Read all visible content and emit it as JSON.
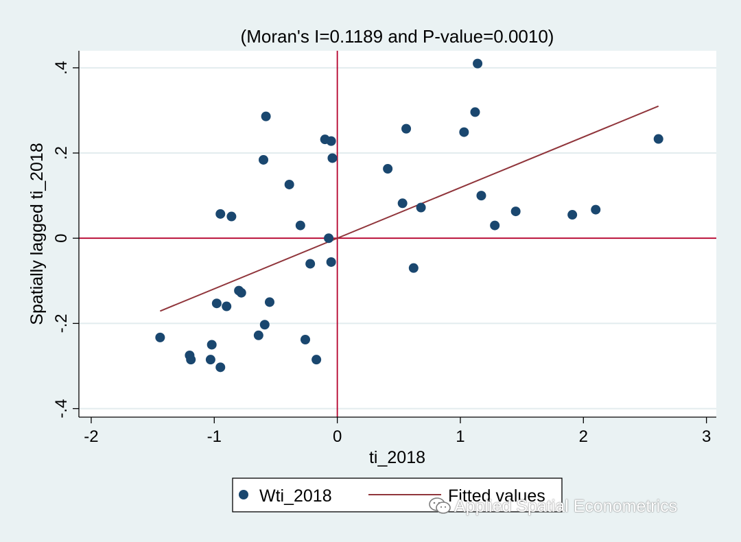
{
  "chart_data": {
    "type": "scatter",
    "title": "(Moran's I=0.1189 and P-value=0.0010)",
    "xlabel": "ti_2018",
    "ylabel": "Spatially lagged ti_2018",
    "xlim": [
      -2.1,
      3.08
    ],
    "ylim": [
      -0.42,
      0.44
    ],
    "x_ticks": [
      -2,
      -1,
      0,
      1,
      2,
      3
    ],
    "x_tick_labels": [
      "-2",
      "-1",
      "0",
      "1",
      "2",
      "3"
    ],
    "y_ticks": [
      -0.4,
      -0.2,
      0,
      0.2,
      0.4
    ],
    "y_tick_labels": [
      "-.4",
      "-.2",
      "0",
      ".2",
      ".4"
    ],
    "grid": "horizontal",
    "reference_lines": {
      "x": 0,
      "y": 0,
      "color": "#b5002b"
    },
    "series": [
      {
        "name": "Wti_2018",
        "kind": "points",
        "color": "#1a476f",
        "points": [
          [
            -1.44,
            -0.233
          ],
          [
            -1.2,
            -0.275
          ],
          [
            -1.19,
            -0.285
          ],
          [
            -1.02,
            -0.25
          ],
          [
            -1.03,
            -0.285
          ],
          [
            -0.95,
            -0.303
          ],
          [
            -0.98,
            -0.153
          ],
          [
            -0.9,
            -0.16
          ],
          [
            -0.95,
            0.057
          ],
          [
            -0.86,
            0.051
          ],
          [
            -0.8,
            -0.123
          ],
          [
            -0.78,
            -0.128
          ],
          [
            -0.64,
            -0.228
          ],
          [
            -0.59,
            -0.203
          ],
          [
            -0.55,
            -0.15
          ],
          [
            -0.6,
            0.184
          ],
          [
            -0.58,
            0.286
          ],
          [
            -0.39,
            0.126
          ],
          [
            -0.3,
            0.03
          ],
          [
            -0.26,
            -0.238
          ],
          [
            -0.22,
            -0.06
          ],
          [
            -0.17,
            -0.285
          ],
          [
            -0.1,
            0.232
          ],
          [
            -0.07,
            0.0
          ],
          [
            -0.05,
            0.228
          ],
          [
            -0.04,
            0.188
          ],
          [
            -0.05,
            -0.056
          ],
          [
            0.41,
            0.163
          ],
          [
            0.53,
            0.082
          ],
          [
            0.56,
            0.257
          ],
          [
            0.62,
            -0.07
          ],
          [
            0.68,
            0.072
          ],
          [
            1.03,
            0.249
          ],
          [
            1.12,
            0.296
          ],
          [
            1.14,
            0.41
          ],
          [
            1.17,
            0.1
          ],
          [
            1.28,
            0.03
          ],
          [
            1.45,
            0.063
          ],
          [
            1.91,
            0.055
          ],
          [
            2.1,
            0.067
          ],
          [
            2.61,
            0.233
          ]
        ]
      },
      {
        "name": "Fitted values",
        "kind": "line",
        "color": "#90353b",
        "x": [
          -1.44,
          2.61
        ],
        "y": [
          -0.171,
          0.31
        ]
      }
    ],
    "legend": {
      "position": "bottom",
      "entries": [
        {
          "label": "Wti_2018",
          "marker": "dot",
          "color": "#1a476f"
        },
        {
          "label": "Fitted values",
          "marker": "line",
          "color": "#90353b"
        }
      ]
    }
  },
  "watermark": {
    "text": "Applied Spatial Econometrics",
    "icon": "wechat-icon"
  }
}
